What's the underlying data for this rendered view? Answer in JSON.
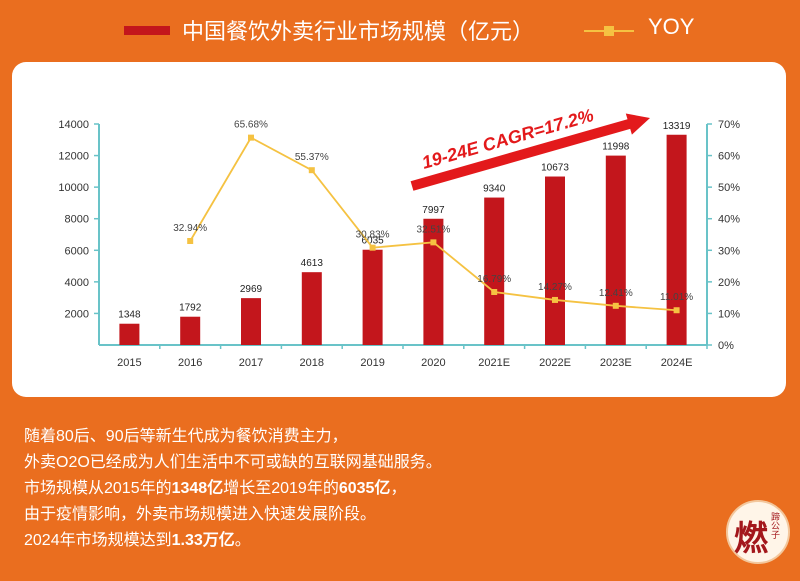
{
  "legend": {
    "bar_label": "中国餐饮外卖行业市场规模（亿元）",
    "yoy_label": "YOY"
  },
  "annotation": "19-24E CAGR=17.2%",
  "colors": {
    "bar": "#c3161c",
    "yoy": "#f5c242",
    "axis": "#69c3c8",
    "arrow": "#e3191b"
  },
  "chart_data": {
    "type": "bar",
    "categories": [
      "2015",
      "2016",
      "2017",
      "2018",
      "2019",
      "2020",
      "2021E",
      "2022E",
      "2023E",
      "2024E"
    ],
    "series": [
      {
        "name": "中国餐饮外卖行业市场规模（亿元）",
        "type": "bar",
        "axis": "left",
        "values": [
          1348,
          1792,
          2969,
          4613,
          6035,
          7997,
          9340,
          10673,
          11998,
          13319
        ]
      },
      {
        "name": "YOY",
        "type": "line",
        "axis": "right",
        "values": [
          null,
          32.94,
          65.68,
          55.37,
          30.83,
          32.51,
          16.79,
          14.27,
          12.41,
          11.01
        ],
        "labels": [
          "",
          "32.94%",
          "65.68%",
          "55.37%",
          "30.83%",
          "32.51%",
          "16.79%",
          "14.27%",
          "12.41%",
          "11.01%"
        ]
      }
    ],
    "y_left": {
      "ylim": [
        0,
        14000
      ],
      "ticks": [
        2000,
        4000,
        6000,
        8000,
        10000,
        12000,
        14000
      ]
    },
    "y_right": {
      "ylim": [
        0,
        70
      ],
      "ticks": [
        "0%",
        "10%",
        "20%",
        "30%",
        "40%",
        "50%",
        "60%",
        "70%"
      ]
    }
  },
  "text": {
    "line1": "随着80后、90后等新生代成为餐饮消费主力，",
    "line2": "外卖O2O已经成为人们生活中不可或缺的互联网基础服务。",
    "line3_a": "市场规模从2015年的",
    "line3_b": "1348亿",
    "line3_c": "增长至2019年的",
    "line3_d": "6035亿",
    "line3_e": "，",
    "line4": "由于疫情影响，外卖市场规模进入快速发展阶段。",
    "line5_a": "2024年市场规模达到",
    "line5_b": "1.33万亿",
    "line5_c": "。"
  },
  "logo": {
    "big": "燃",
    "small": "蹄公子"
  }
}
